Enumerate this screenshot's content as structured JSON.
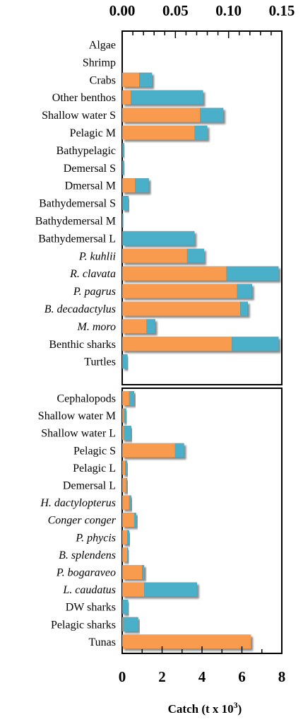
{
  "chart_data": {
    "type": "bar",
    "stacked": true,
    "orientation": "horizontal",
    "xlabel": "Catch (t x 10",
    "xlabel_superscript": "3",
    "xlabel_suffix": ")",
    "x_bottom": {
      "lim": [
        0,
        8
      ],
      "ticks": [
        "0",
        "2",
        "4",
        "6",
        "8"
      ]
    },
    "x_top": {
      "lim": [
        0,
        0.15
      ],
      "ticks": [
        "0.00",
        "0.05",
        "0.10",
        "0.15"
      ]
    },
    "colors": {
      "orange": "#F89B4E",
      "blue": "#4AAFC8"
    },
    "panels": [
      {
        "axis": "top",
        "categories": [
          {
            "label": "Algae",
            "italic": false,
            "orange": 0,
            "blue": 0
          },
          {
            "label": "Shrimp",
            "italic": false,
            "orange": 0,
            "blue": 0
          },
          {
            "label": "Crabs",
            "italic": false,
            "orange": 0.016,
            "blue": 0.012
          },
          {
            "label": "Other benthos",
            "italic": false,
            "orange": 0.008,
            "blue": 0.068
          },
          {
            "label": "Shallow water S",
            "italic": false,
            "orange": 0.073,
            "blue": 0.022
          },
          {
            "label": "Pelagic M",
            "italic": false,
            "orange": 0.068,
            "blue": 0.012
          },
          {
            "label": "Bathypelagic",
            "italic": false,
            "orange": 0,
            "blue": 0.002
          },
          {
            "label": "Demersal S",
            "italic": false,
            "orange": 0,
            "blue": 0.002
          },
          {
            "label": "Dmersal M",
            "italic": false,
            "orange": 0.012,
            "blue": 0.013
          },
          {
            "label": "Bathydemersal S",
            "italic": false,
            "orange": 0,
            "blue": 0.006
          },
          {
            "label": "Bathydemersal M",
            "italic": false,
            "orange": 0,
            "blue": 0.001
          },
          {
            "label": "Bathydemersal L",
            "italic": false,
            "orange": 0,
            "blue": 0.068
          },
          {
            "label": "P. kuhlii",
            "italic": true,
            "orange": 0.061,
            "blue": 0.016
          },
          {
            "label": "R. clavata",
            "italic": true,
            "orange": 0.098,
            "blue": 0.049
          },
          {
            "label": "P. pagrus",
            "italic": true,
            "orange": 0.108,
            "blue": 0.014
          },
          {
            "label": "B. decadactylus",
            "italic": true,
            "orange": 0.111,
            "blue": 0.007
          },
          {
            "label": "M. moro",
            "italic": true,
            "orange": 0.023,
            "blue": 0.008
          },
          {
            "label": "Benthic sharks",
            "italic": false,
            "orange": 0.103,
            "blue": 0.044
          },
          {
            "label": "Turtles",
            "italic": false,
            "orange": 0,
            "blue": 0.005
          }
        ]
      },
      {
        "axis": "bottom",
        "categories": [
          {
            "label": "Cephalopods",
            "italic": false,
            "orange": 0.35,
            "blue": 0.25
          },
          {
            "label": "Shallow water M",
            "italic": false,
            "orange": 0.1,
            "blue": 0.1
          },
          {
            "label": "Shallow water L",
            "italic": false,
            "orange": 0.1,
            "blue": 0.35
          },
          {
            "label": "Pelagic S",
            "italic": false,
            "orange": 2.65,
            "blue": 0.45
          },
          {
            "label": "Pelagic L",
            "italic": false,
            "orange": 0.15,
            "blue": 0.1
          },
          {
            "label": "Demersal L",
            "italic": false,
            "orange": 0.2,
            "blue": 0.05
          },
          {
            "label": "H. dactylopterus",
            "italic": true,
            "orange": 0.35,
            "blue": 0.1
          },
          {
            "label": "Conger conger",
            "italic": true,
            "orange": 0.6,
            "blue": 0.1
          },
          {
            "label": "P. phycis",
            "italic": true,
            "orange": 0.25,
            "blue": 0.1
          },
          {
            "label": "B. splendens",
            "italic": true,
            "orange": 0.25,
            "blue": 0.05
          },
          {
            "label": "P. bogaraveo",
            "italic": true,
            "orange": 1.0,
            "blue": 0.1
          },
          {
            "label": "L. caudatus",
            "italic": true,
            "orange": 1.1,
            "blue": 2.65
          },
          {
            "label": "DW sharks",
            "italic": false,
            "orange": 0,
            "blue": 0.3
          },
          {
            "label": "Pelagic sharks",
            "italic": false,
            "orange": 0.05,
            "blue": 0.75
          },
          {
            "label": "Tunas",
            "italic": false,
            "orange": 6.45,
            "blue": 0
          }
        ]
      }
    ]
  }
}
